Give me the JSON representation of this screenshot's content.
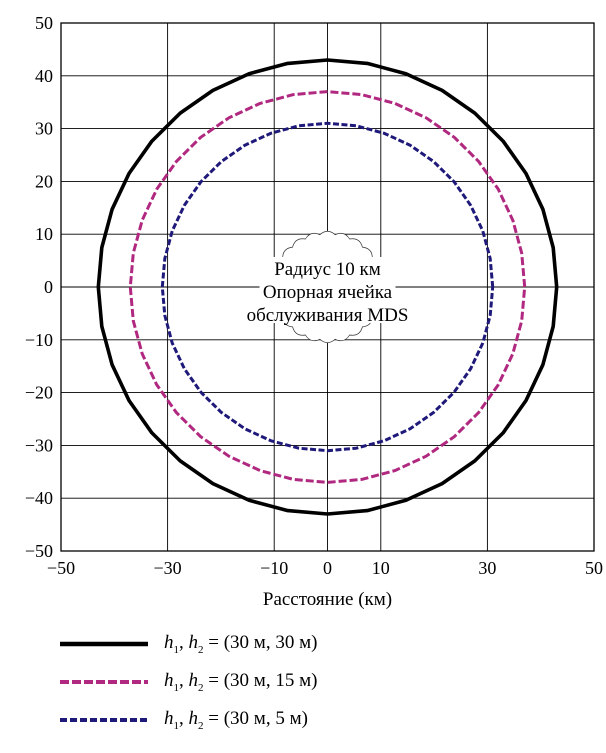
{
  "chart_data": {
    "type": "line",
    "xlabel": "Расстояние (км)",
    "ylabel": "",
    "xlim": [
      -50,
      50
    ],
    "ylim": [
      -50,
      50
    ],
    "x_ticks": [
      "−50",
      "−30",
      "−10",
      "0",
      "10",
      "30",
      "50"
    ],
    "x_tick_values": [
      -50,
      -30,
      -10,
      0,
      10,
      30,
      50
    ],
    "y_ticks": [
      "50",
      "40",
      "30",
      "20",
      "10",
      "0",
      "−10",
      "−20",
      "−30",
      "−40",
      "−50"
    ],
    "y_tick_values": [
      50,
      40,
      30,
      20,
      10,
      0,
      -10,
      -20,
      -30,
      -40,
      -50
    ],
    "grid": true,
    "vertical_gridlines": [
      -30,
      -10,
      0,
      10,
      30
    ],
    "horizontal_gridlines": [
      40,
      30,
      20,
      10,
      0,
      -10,
      -20,
      -30,
      -40
    ],
    "series": [
      {
        "name": "h1, h2 = (30 м, 30 м)",
        "shape": "circle",
        "radius": 43,
        "color": "#000000",
        "style": "solid"
      },
      {
        "name": "h1, h2 = (30 м, 15 м)",
        "shape": "circle",
        "radius": 37,
        "color": "#b0287f",
        "style": "dashed"
      },
      {
        "name": "h1, h2 = (30 м, 5 м)",
        "shape": "circle",
        "radius": 31,
        "color": "#1f1a7a",
        "style": "dashed"
      }
    ],
    "reference_cell": {
      "shape": "circle",
      "radius": 10,
      "style": "scalloped outline"
    },
    "annotation": [
      "Радиус 10 км",
      "Опорная ячейка",
      "обслуживания MDS"
    ],
    "legend_position": "bottom",
    "legend": [
      {
        "var1": "h",
        "sub1": "1",
        "var2": "h",
        "sub2": "2",
        "rest": " = (30 м, 30 м)"
      },
      {
        "var1": "h",
        "sub1": "1",
        "var2": "h",
        "sub2": "2",
        "rest": " = (30 м, 15 м)"
      },
      {
        "var1": "h",
        "sub1": "1",
        "var2": "h",
        "sub2": "2",
        "rest": " = (30 м, 5 м)"
      }
    ]
  }
}
